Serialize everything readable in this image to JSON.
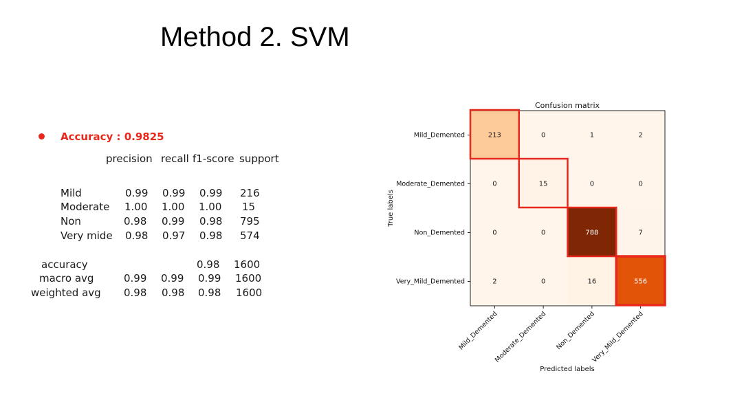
{
  "slide": {
    "title": "Method 2. SVM"
  },
  "accuracy_line": "Accuracy : 0.9825",
  "report": {
    "headers": [
      "precision",
      "recall",
      "f1-score",
      "support"
    ],
    "classes": [
      {
        "label": "Mild",
        "precision": "0.99",
        "recall": "0.99",
        "f1": "0.99",
        "support": "216"
      },
      {
        "label": "Moderate",
        "precision": "1.00",
        "recall": "1.00",
        "f1": "1.00",
        "support": "15"
      },
      {
        "label": "Non",
        "precision": "0.98",
        "recall": "0.99",
        "f1": "0.98",
        "support": "795"
      },
      {
        "label": "Very mide",
        "precision": "0.98",
        "recall": "0.97",
        "f1": "0.98",
        "support": "574"
      }
    ],
    "summary": [
      {
        "label": "accuracy",
        "precision": "",
        "recall": "",
        "f1": "0.98",
        "support": "1600"
      },
      {
        "label": "macro avg",
        "precision": "0.99",
        "recall": "0.99",
        "f1": "0.99",
        "support": "1600"
      },
      {
        "label": "weighted avg",
        "precision": "0.98",
        "recall": "0.98",
        "f1": "0.98",
        "support": "1600"
      }
    ]
  },
  "chart_data": {
    "type": "heatmap",
    "title": "Confusion matrix",
    "xlabel": "Predicted labels",
    "ylabel": "True labels",
    "x_labels": [
      "Mild_Demented",
      "Moderate_Demented",
      "Non_Demented",
      "Very_Mild_Demented"
    ],
    "y_labels": [
      "Mild_Demented",
      "Moderate_Demented",
      "Non_Demented",
      "Very_Mild_Demented"
    ],
    "matrix": [
      [
        213,
        0,
        1,
        2
      ],
      [
        0,
        15,
        0,
        0
      ],
      [
        0,
        0,
        788,
        7
      ],
      [
        2,
        0,
        16,
        556
      ]
    ],
    "colormap": "Oranges",
    "highlight_color": "#e8281c",
    "highlighted": "diagonal"
  }
}
